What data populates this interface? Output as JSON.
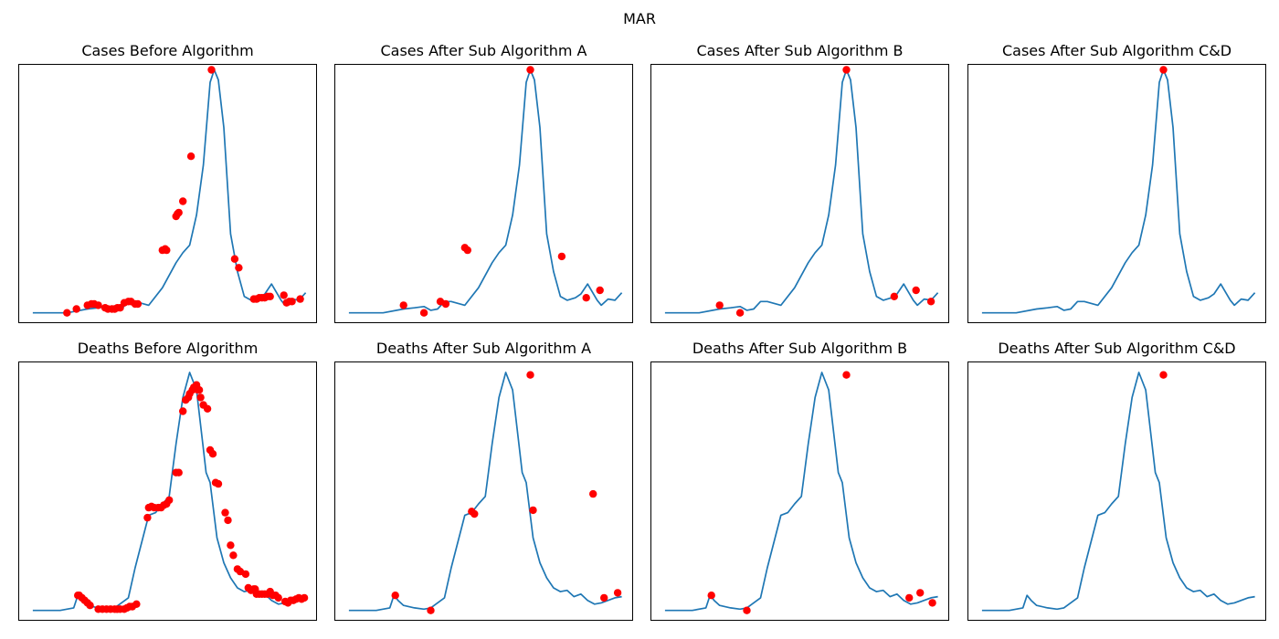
{
  "figure": {
    "title": "MAR"
  },
  "colors": {
    "line": "#1f77b4",
    "marker": "#ff0000"
  },
  "chart_data": [
    {
      "type": "line",
      "title": "Cases Before Algorithm",
      "xlabel": "",
      "ylabel": "",
      "grid": false,
      "xlim": [
        -10,
        209
      ],
      "ylim": [
        -7,
        200
      ],
      "series": [
        {
          "x": [
            0,
            25,
            40,
            48,
            55,
            60,
            65,
            70,
            75,
            85,
            95,
            105,
            110,
            115,
            120,
            125,
            130,
            133,
            136,
            140,
            145,
            150,
            155,
            160,
            166,
            170,
            175,
            182,
            185,
            190,
            195,
            200
          ],
          "y": [
            2,
            2,
            5,
            6,
            7,
            4,
            5,
            11,
            11,
            8,
            22,
            42,
            50,
            56,
            80,
            120,
            186,
            196,
            188,
            150,
            65,
            35,
            15,
            12,
            14,
            17,
            25,
            12,
            8,
            13,
            12,
            18
          ]
        }
      ],
      "markers": {
        "x": [
          25,
          32,
          40,
          43,
          45,
          48,
          53,
          55,
          58,
          60,
          62,
          64,
          67,
          70,
          72,
          75,
          77,
          95,
          97,
          98,
          105,
          106,
          107,
          110,
          116,
          131,
          148,
          151,
          162,
          164,
          166,
          168,
          170,
          172,
          174,
          184,
          186,
          188,
          190,
          196
        ],
        "y": [
          2,
          5,
          8,
          9,
          9,
          8,
          6,
          5,
          5,
          5,
          6,
          6,
          10,
          11,
          11,
          9,
          9,
          52,
          53,
          52,
          79,
          81,
          82,
          91,
          127,
          196,
          45,
          38,
          13,
          13,
          14,
          14,
          14,
          15,
          15,
          16,
          10,
          11,
          11,
          13
        ]
      }
    },
    {
      "type": "line",
      "title": "Cases After Sub Algorithm A",
      "xlabel": "",
      "ylabel": "",
      "grid": false,
      "xlim": [
        -10,
        209
      ],
      "ylim": [
        -7,
        200
      ],
      "series": [
        {
          "x": [
            0,
            25,
            40,
            48,
            55,
            60,
            65,
            70,
            75,
            85,
            95,
            105,
            110,
            115,
            120,
            125,
            130,
            133,
            136,
            140,
            145,
            150,
            155,
            160,
            166,
            170,
            175,
            182,
            185,
            190,
            195,
            200
          ],
          "y": [
            2,
            2,
            5,
            6,
            7,
            4,
            5,
            11,
            11,
            8,
            22,
            42,
            50,
            56,
            80,
            120,
            186,
            196,
            188,
            150,
            65,
            35,
            15,
            12,
            14,
            17,
            25,
            12,
            8,
            13,
            12,
            18
          ]
        }
      ],
      "markers": {
        "x": [
          40,
          55,
          67,
          71,
          85,
          87,
          133,
          156,
          174,
          184
        ],
        "y": [
          8,
          2,
          11,
          9,
          54,
          52,
          196,
          47,
          14,
          20
        ]
      }
    },
    {
      "type": "line",
      "title": "Cases After Sub Algorithm B",
      "xlabel": "",
      "ylabel": "",
      "grid": false,
      "xlim": [
        -10,
        209
      ],
      "ylim": [
        -7,
        200
      ],
      "series": [
        {
          "x": [
            0,
            25,
            40,
            48,
            55,
            60,
            65,
            70,
            75,
            85,
            95,
            105,
            110,
            115,
            120,
            125,
            130,
            133,
            136,
            140,
            145,
            150,
            155,
            160,
            166,
            170,
            175,
            182,
            185,
            190,
            195,
            200
          ],
          "y": [
            2,
            2,
            5,
            6,
            7,
            4,
            5,
            11,
            11,
            8,
            22,
            42,
            50,
            56,
            80,
            120,
            186,
            196,
            188,
            150,
            65,
            35,
            15,
            12,
            14,
            17,
            25,
            12,
            8,
            13,
            12,
            18
          ]
        }
      ],
      "markers": {
        "x": [
          40,
          55,
          133,
          168,
          184,
          195
        ],
        "y": [
          8,
          2,
          196,
          15,
          20,
          11
        ]
      }
    },
    {
      "type": "line",
      "title": "Cases After Sub Algorithm C&D",
      "xlabel": "",
      "ylabel": "",
      "grid": false,
      "xlim": [
        -10,
        209
      ],
      "ylim": [
        -7,
        200
      ],
      "series": [
        {
          "x": [
            0,
            25,
            40,
            48,
            55,
            60,
            65,
            70,
            75,
            85,
            95,
            105,
            110,
            115,
            120,
            125,
            130,
            133,
            136,
            140,
            145,
            150,
            155,
            160,
            166,
            170,
            175,
            182,
            185,
            190,
            195,
            200
          ],
          "y": [
            2,
            2,
            5,
            6,
            7,
            4,
            5,
            11,
            11,
            8,
            22,
            42,
            50,
            56,
            80,
            120,
            186,
            196,
            188,
            150,
            65,
            35,
            15,
            12,
            14,
            17,
            25,
            12,
            8,
            13,
            12,
            18
          ]
        }
      ],
      "markers": {
        "x": [
          133
        ],
        "y": [
          196
        ]
      }
    },
    {
      "type": "line",
      "title": "Deaths Before Algorithm",
      "xlabel": "",
      "ylabel": "",
      "grid": false,
      "xlim": [
        -10,
        209
      ],
      "ylim": [
        -7,
        200
      ],
      "series": [
        {
          "x": [
            0,
            20,
            30,
            33,
            36,
            40,
            48,
            55,
            60,
            65,
            70,
            75,
            85,
            90,
            95,
            100,
            105,
            110,
            115,
            120,
            125,
            127,
            130,
            135,
            140,
            145,
            150,
            155,
            160,
            165,
            170,
            175,
            180,
            185,
            190,
            195,
            200
          ],
          "y": [
            2,
            2,
            4,
            14,
            10,
            6,
            4,
            3,
            4,
            8,
            12,
            36,
            78,
            80,
            87,
            93,
            135,
            172,
            192,
            178,
            131,
            112,
            104,
            60,
            40,
            28,
            20,
            17,
            18,
            13,
            15,
            10,
            7,
            8,
            10,
            12,
            13
          ]
        }
      ],
      "markers": {
        "x": [
          33,
          34,
          36,
          38,
          40,
          42,
          48,
          51,
          54,
          57,
          60,
          62,
          64,
          67,
          69,
          71,
          73,
          76,
          84,
          85,
          87,
          89,
          92,
          94,
          96,
          98,
          100,
          105,
          107,
          110,
          112,
          114,
          115,
          117,
          118,
          119,
          120,
          121,
          122,
          123,
          125,
          128,
          130,
          132,
          134,
          136,
          141,
          143,
          145,
          147,
          150,
          152,
          156,
          158,
          160,
          162,
          163,
          164,
          166,
          168,
          170,
          172,
          174,
          176,
          178,
          180,
          185,
          187,
          189,
          191,
          193,
          195,
          197,
          199
        ],
        "y": [
          14,
          14,
          12,
          10,
          8,
          6,
          3,
          3,
          3,
          3,
          3,
          3,
          3,
          3,
          4,
          5,
          5,
          7,
          76,
          84,
          85,
          84,
          84,
          84,
          86,
          87,
          90,
          112,
          112,
          161,
          170,
          172,
          175,
          178,
          180,
          180,
          182,
          178,
          178,
          172,
          166,
          163,
          130,
          127,
          104,
          103,
          80,
          74,
          54,
          46,
          35,
          33,
          31,
          20,
          18,
          19,
          19,
          15,
          15,
          15,
          15,
          15,
          17,
          14,
          14,
          12,
          9,
          8,
          10,
          10,
          11,
          12,
          11,
          12
        ]
      }
    },
    {
      "type": "line",
      "title": "Deaths After Sub Algorithm A",
      "xlabel": "",
      "ylabel": "",
      "grid": false,
      "xlim": [
        -10,
        209
      ],
      "ylim": [
        -7,
        200
      ],
      "series": [
        {
          "x": [
            0,
            20,
            30,
            33,
            36,
            40,
            48,
            55,
            60,
            65,
            70,
            75,
            85,
            90,
            95,
            100,
            105,
            110,
            115,
            120,
            125,
            127,
            130,
            135,
            140,
            145,
            150,
            155,
            160,
            165,
            170,
            175,
            180,
            185,
            190,
            195,
            200
          ],
          "y": [
            2,
            2,
            4,
            14,
            10,
            6,
            4,
            3,
            4,
            8,
            12,
            36,
            78,
            80,
            87,
            93,
            135,
            172,
            192,
            178,
            131,
            112,
            104,
            60,
            40,
            28,
            20,
            17,
            18,
            13,
            15,
            10,
            7,
            8,
            10,
            12,
            13
          ]
        }
      ],
      "markers": {
        "x": [
          34,
          60,
          90,
          92,
          133,
          135,
          179,
          187,
          197
        ],
        "y": [
          14,
          2,
          81,
          79,
          190,
          82,
          95,
          12,
          16
        ]
      }
    },
    {
      "type": "line",
      "title": "Deaths After Sub Algorithm B",
      "xlabel": "",
      "ylabel": "",
      "grid": false,
      "xlim": [
        -10,
        209
      ],
      "ylim": [
        -7,
        200
      ],
      "series": [
        {
          "x": [
            0,
            20,
            30,
            33,
            36,
            40,
            48,
            55,
            60,
            65,
            70,
            75,
            85,
            90,
            95,
            100,
            105,
            110,
            115,
            120,
            125,
            127,
            130,
            135,
            140,
            145,
            150,
            155,
            160,
            165,
            170,
            175,
            180,
            185,
            190,
            195,
            200
          ],
          "y": [
            2,
            2,
            4,
            14,
            10,
            6,
            4,
            3,
            4,
            8,
            12,
            36,
            78,
            80,
            87,
            93,
            135,
            172,
            192,
            178,
            131,
            112,
            104,
            60,
            40,
            28,
            20,
            17,
            18,
            13,
            15,
            10,
            7,
            8,
            10,
            12,
            13
          ]
        }
      ],
      "markers": {
        "x": [
          34,
          60,
          133,
          179,
          187,
          196
        ],
        "y": [
          14,
          2,
          190,
          12,
          16,
          8
        ]
      }
    },
    {
      "type": "line",
      "title": "Deaths After Sub Algorithm C&D",
      "xlabel": "",
      "ylabel": "",
      "grid": false,
      "xlim": [
        -10,
        209
      ],
      "ylim": [
        -7,
        200
      ],
      "series": [
        {
          "x": [
            0,
            20,
            30,
            33,
            36,
            40,
            48,
            55,
            60,
            65,
            70,
            75,
            85,
            90,
            95,
            100,
            105,
            110,
            115,
            120,
            125,
            127,
            130,
            135,
            140,
            145,
            150,
            155,
            160,
            165,
            170,
            175,
            180,
            185,
            190,
            195,
            200
          ],
          "y": [
            2,
            2,
            4,
            14,
            10,
            6,
            4,
            3,
            4,
            8,
            12,
            36,
            78,
            80,
            87,
            93,
            135,
            172,
            192,
            178,
            131,
            112,
            104,
            60,
            40,
            28,
            20,
            17,
            18,
            13,
            15,
            10,
            7,
            8,
            10,
            12,
            13
          ]
        }
      ],
      "markers": {
        "x": [
          133
        ],
        "y": [
          190
        ]
      }
    }
  ]
}
